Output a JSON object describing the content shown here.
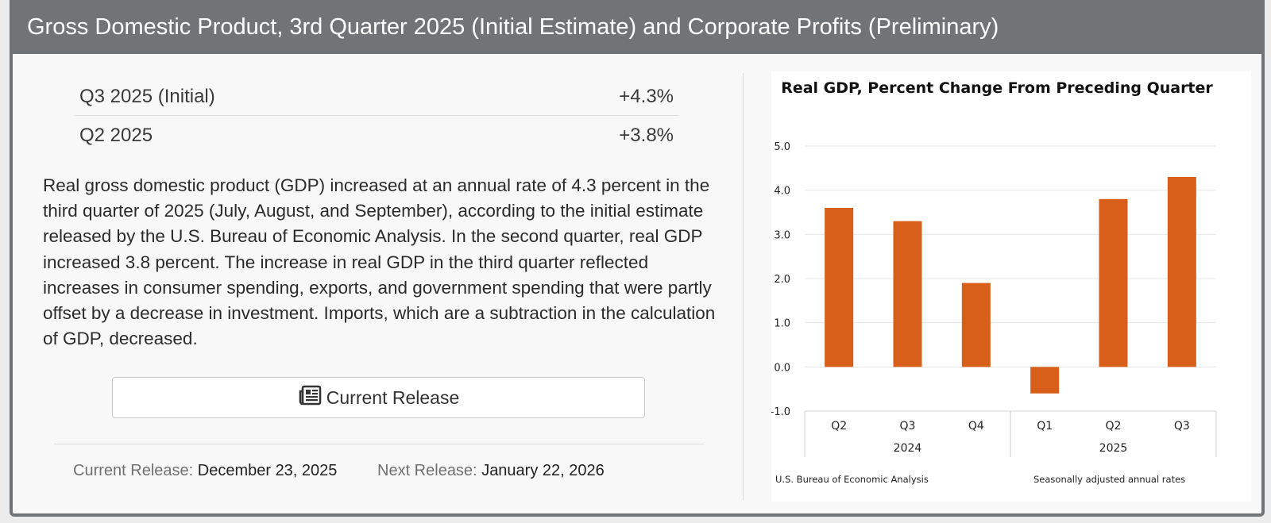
{
  "header": {
    "title": "Gross Domestic Product, 3rd Quarter 2025 (Initial Estimate) and Corporate Profits (Preliminary)"
  },
  "stats": [
    {
      "label": "Q3 2025 (Initial)",
      "value": "+4.3%"
    },
    {
      "label": "Q2 2025",
      "value": "+3.8%"
    }
  ],
  "description": "Real gross domestic product (GDP) increased at an annual rate of 4.3 percent in the third quarter of 2025 (July, August, and September), according to the initial estimate released by the U.S. Bureau of Economic Analysis. In the second quarter, real GDP increased 3.8 percent. The increase in real GDP in the third quarter reflected increases in consumer spending, exports, and government spending that were partly offset by a decrease in investment. Imports, which are a subtraction in the calculation of GDP, decreased.",
  "release_button": {
    "label": "Current Release",
    "icon": "newspaper-icon"
  },
  "release_info": {
    "current_label": "Current Release:",
    "current_date": "December 23, 2025",
    "next_label": "Next Release:",
    "next_date": "January 22, 2026"
  },
  "colors": {
    "header_bg": "#717477",
    "bar": "#d75f19"
  },
  "chart_data": {
    "type": "bar",
    "title": "Real GDP, Percent Change From Preceding Quarter",
    "categories": [
      "Q2",
      "Q3",
      "Q4",
      "Q1",
      "Q2",
      "Q3"
    ],
    "groups": [
      {
        "label": "2024",
        "count": 3
      },
      {
        "label": "2025",
        "count": 3
      }
    ],
    "values": [
      3.6,
      3.3,
      1.9,
      -0.6,
      3.8,
      4.3
    ],
    "yticks": [
      "5.0",
      "4.0",
      "3.0",
      "2.0",
      "1.0",
      "0.0",
      "-1.0"
    ],
    "ylim": [
      -1.0,
      5.0
    ],
    "xlabel": "",
    "ylabel": "",
    "source": "U.S. Bureau of Economic Analysis",
    "note": "Seasonally adjusted annual rates"
  }
}
